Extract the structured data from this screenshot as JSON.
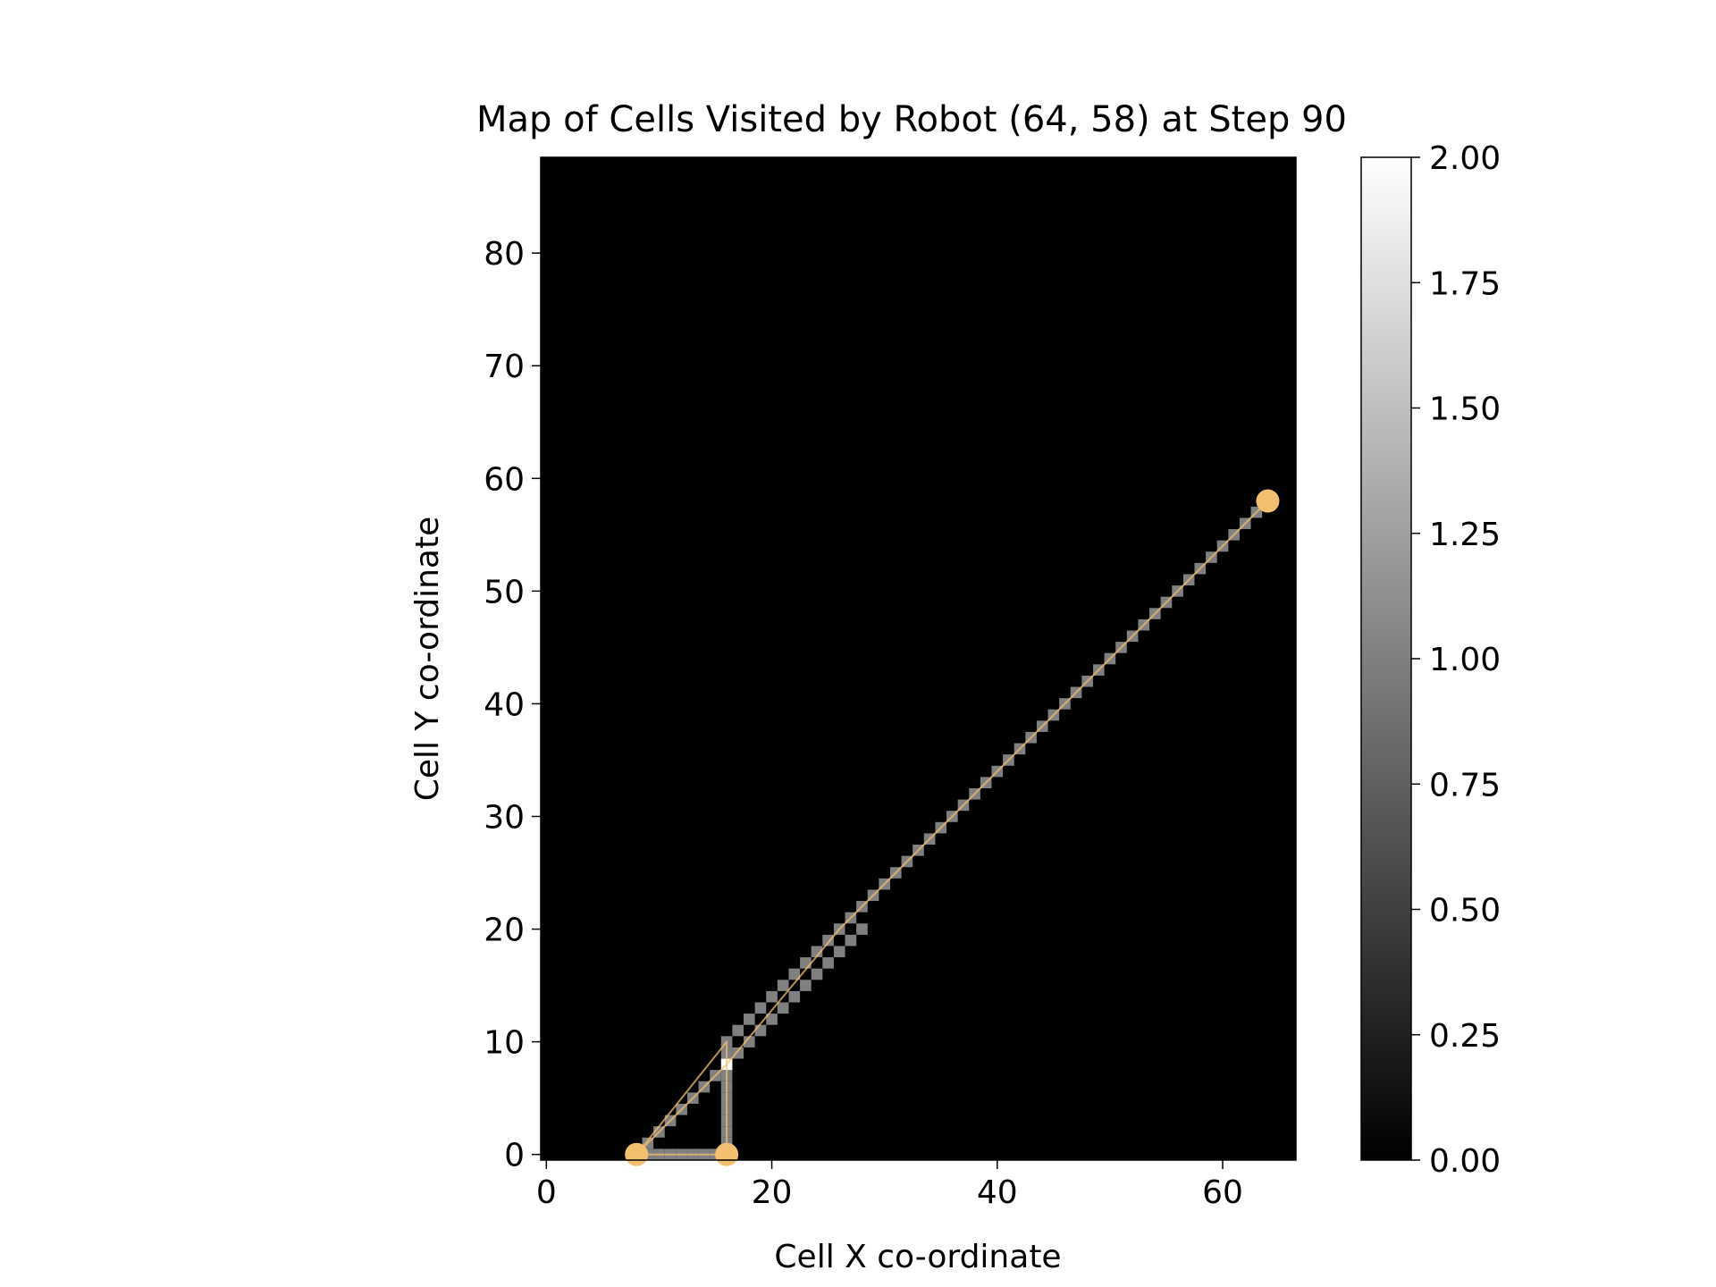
{
  "chart_data": {
    "type": "heatmap",
    "title": "Map of Cells Visited by Robot (64, 58) at Step 90",
    "xlabel": "Cell X co-ordinate",
    "ylabel": "Cell Y co-ordinate",
    "xlim": [
      -0.5,
      66.5
    ],
    "ylim": [
      -0.5,
      88.5
    ],
    "xticks": [
      0,
      20,
      40,
      60
    ],
    "yticks": [
      0,
      10,
      20,
      30,
      40,
      50,
      60,
      70,
      80
    ],
    "colormap": "gray",
    "background_color": "#000000",
    "colorbar": {
      "min": 0.0,
      "max": 2.0,
      "ticks": [
        "0.00",
        "0.25",
        "0.50",
        "0.75",
        "1.00",
        "1.25",
        "1.50",
        "1.75",
        "2.00"
      ]
    },
    "visit_segments": [
      {
        "from": [
          8,
          0
        ],
        "to": [
          16,
          0
        ],
        "value": 1
      },
      {
        "from": [
          16,
          0
        ],
        "to": [
          16,
          10
        ],
        "value": 1
      },
      {
        "from": [
          8,
          0
        ],
        "to": [
          16,
          8
        ],
        "value": 1
      },
      {
        "from": [
          16,
          10
        ],
        "to": [
          26,
          20
        ],
        "value": 1
      },
      {
        "from": [
          16,
          8
        ],
        "to": [
          28,
          20
        ],
        "value": 1
      },
      {
        "from": [
          26,
          20
        ],
        "to": [
          64,
          58
        ],
        "value": 1
      }
    ],
    "revisited_cells": [
      {
        "x": 16,
        "y": 8,
        "value": 2
      }
    ],
    "robot_path": {
      "color": "#f2c06e",
      "x": [
        8,
        16,
        16,
        8,
        16,
        26,
        64
      ],
      "y": [
        0,
        0,
        10,
        0,
        8,
        20,
        58
      ]
    },
    "markers": {
      "color": "#f2c06e",
      "points": [
        {
          "x": 8,
          "y": 0
        },
        {
          "x": 16,
          "y": 0
        },
        {
          "x": 64,
          "y": 58
        }
      ]
    }
  }
}
